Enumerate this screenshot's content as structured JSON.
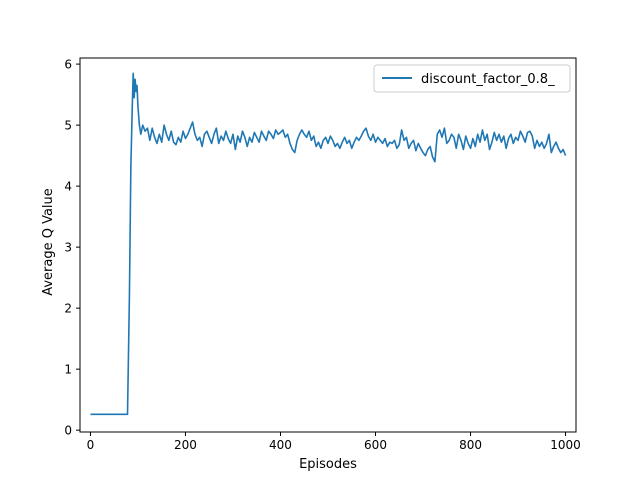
{
  "chart_data": {
    "type": "line",
    "title": "",
    "xlabel": "Episodes",
    "ylabel": "Average Q Value",
    "xlim": [
      -22,
      1022
    ],
    "ylim": [
      -0.03,
      6.1
    ],
    "xticks": [
      0,
      200,
      400,
      600,
      800,
      1000
    ],
    "yticks": [
      0,
      1,
      2,
      3,
      4,
      5,
      6
    ],
    "grid": false,
    "legend_position": "top-right",
    "series": [
      {
        "name": "discount_factor_0.8_",
        "color": "#1f77b4",
        "points": [
          [
            0,
            0.26
          ],
          [
            20,
            0.26
          ],
          [
            40,
            0.26
          ],
          [
            60,
            0.26
          ],
          [
            78,
            0.26
          ],
          [
            82,
            2.2
          ],
          [
            85,
            4.3
          ],
          [
            88,
            5.3
          ],
          [
            90,
            5.85
          ],
          [
            92,
            5.45
          ],
          [
            94,
            5.75
          ],
          [
            96,
            5.55
          ],
          [
            98,
            5.65
          ],
          [
            100,
            5.3
          ],
          [
            103,
            5.0
          ],
          [
            106,
            4.85
          ],
          [
            110,
            5.0
          ],
          [
            115,
            4.9
          ],
          [
            120,
            4.95
          ],
          [
            125,
            4.75
          ],
          [
            130,
            4.95
          ],
          [
            135,
            4.8
          ],
          [
            140,
            4.7
          ],
          [
            145,
            4.85
          ],
          [
            150,
            4.72
          ],
          [
            155,
            5.0
          ],
          [
            160,
            4.85
          ],
          [
            165,
            4.75
          ],
          [
            170,
            4.9
          ],
          [
            175,
            4.72
          ],
          [
            180,
            4.68
          ],
          [
            185,
            4.8
          ],
          [
            190,
            4.72
          ],
          [
            195,
            4.9
          ],
          [
            200,
            4.78
          ],
          [
            205,
            4.85
          ],
          [
            210,
            4.95
          ],
          [
            215,
            5.05
          ],
          [
            220,
            4.85
          ],
          [
            225,
            4.75
          ],
          [
            230,
            4.8
          ],
          [
            235,
            4.65
          ],
          [
            240,
            4.85
          ],
          [
            245,
            4.9
          ],
          [
            250,
            4.8
          ],
          [
            255,
            4.7
          ],
          [
            260,
            4.85
          ],
          [
            265,
            4.95
          ],
          [
            270,
            4.7
          ],
          [
            275,
            4.82
          ],
          [
            280,
            4.75
          ],
          [
            285,
            4.9
          ],
          [
            290,
            4.78
          ],
          [
            295,
            4.7
          ],
          [
            300,
            4.85
          ],
          [
            305,
            4.6
          ],
          [
            310,
            4.82
          ],
          [
            315,
            4.72
          ],
          [
            320,
            4.9
          ],
          [
            325,
            4.8
          ],
          [
            330,
            4.65
          ],
          [
            335,
            4.8
          ],
          [
            340,
            4.72
          ],
          [
            345,
            4.88
          ],
          [
            350,
            4.8
          ],
          [
            355,
            4.72
          ],
          [
            360,
            4.9
          ],
          [
            365,
            4.82
          ],
          [
            370,
            4.75
          ],
          [
            375,
            4.9
          ],
          [
            380,
            4.85
          ],
          [
            385,
            4.78
          ],
          [
            390,
            4.92
          ],
          [
            395,
            4.85
          ],
          [
            400,
            4.88
          ],
          [
            405,
            4.92
          ],
          [
            410,
            4.8
          ],
          [
            415,
            4.85
          ],
          [
            420,
            4.7
          ],
          [
            425,
            4.6
          ],
          [
            430,
            4.55
          ],
          [
            435,
            4.75
          ],
          [
            440,
            4.85
          ],
          [
            445,
            4.92
          ],
          [
            450,
            4.85
          ],
          [
            455,
            4.8
          ],
          [
            460,
            4.9
          ],
          [
            465,
            4.75
          ],
          [
            470,
            4.82
          ],
          [
            475,
            4.65
          ],
          [
            480,
            4.72
          ],
          [
            485,
            4.62
          ],
          [
            490,
            4.75
          ],
          [
            495,
            4.8
          ],
          [
            500,
            4.7
          ],
          [
            505,
            4.82
          ],
          [
            510,
            4.75
          ],
          [
            515,
            4.65
          ],
          [
            520,
            4.7
          ],
          [
            525,
            4.62
          ],
          [
            530,
            4.72
          ],
          [
            535,
            4.8
          ],
          [
            540,
            4.7
          ],
          [
            545,
            4.75
          ],
          [
            550,
            4.62
          ],
          [
            555,
            4.72
          ],
          [
            560,
            4.8
          ],
          [
            565,
            4.75
          ],
          [
            570,
            4.82
          ],
          [
            575,
            4.9
          ],
          [
            580,
            4.95
          ],
          [
            585,
            4.82
          ],
          [
            590,
            4.75
          ],
          [
            595,
            4.85
          ],
          [
            600,
            4.72
          ],
          [
            605,
            4.8
          ],
          [
            610,
            4.75
          ],
          [
            615,
            4.7
          ],
          [
            620,
            4.78
          ],
          [
            625,
            4.65
          ],
          [
            630,
            4.72
          ],
          [
            635,
            4.7
          ],
          [
            640,
            4.75
          ],
          [
            645,
            4.62
          ],
          [
            650,
            4.68
          ],
          [
            655,
            4.92
          ],
          [
            660,
            4.75
          ],
          [
            665,
            4.8
          ],
          [
            670,
            4.62
          ],
          [
            675,
            4.7
          ],
          [
            680,
            4.75
          ],
          [
            685,
            4.58
          ],
          [
            690,
            4.7
          ],
          [
            695,
            4.62
          ],
          [
            700,
            4.55
          ],
          [
            705,
            4.5
          ],
          [
            710,
            4.6
          ],
          [
            715,
            4.65
          ],
          [
            720,
            4.48
          ],
          [
            725,
            4.4
          ],
          [
            730,
            4.85
          ],
          [
            735,
            4.92
          ],
          [
            740,
            4.8
          ],
          [
            745,
            4.95
          ],
          [
            750,
            4.7
          ],
          [
            755,
            4.75
          ],
          [
            760,
            4.85
          ],
          [
            765,
            4.8
          ],
          [
            770,
            4.62
          ],
          [
            775,
            4.85
          ],
          [
            780,
            4.75
          ],
          [
            785,
            4.6
          ],
          [
            790,
            4.82
          ],
          [
            795,
            4.7
          ],
          [
            800,
            4.62
          ],
          [
            805,
            4.78
          ],
          [
            810,
            4.65
          ],
          [
            815,
            4.85
          ],
          [
            820,
            4.72
          ],
          [
            825,
            4.92
          ],
          [
            830,
            4.75
          ],
          [
            835,
            4.85
          ],
          [
            840,
            4.6
          ],
          [
            845,
            4.72
          ],
          [
            850,
            4.88
          ],
          [
            855,
            4.75
          ],
          [
            860,
            4.85
          ],
          [
            865,
            4.72
          ],
          [
            870,
            4.82
          ],
          [
            875,
            4.62
          ],
          [
            880,
            4.78
          ],
          [
            885,
            4.85
          ],
          [
            890,
            4.7
          ],
          [
            895,
            4.8
          ],
          [
            900,
            4.75
          ],
          [
            905,
            4.9
          ],
          [
            910,
            4.82
          ],
          [
            915,
            4.72
          ],
          [
            920,
            4.88
          ],
          [
            925,
            4.9
          ],
          [
            930,
            4.82
          ],
          [
            935,
            4.62
          ],
          [
            940,
            4.75
          ],
          [
            945,
            4.65
          ],
          [
            950,
            4.72
          ],
          [
            955,
            4.62
          ],
          [
            960,
            4.7
          ],
          [
            965,
            4.85
          ],
          [
            970,
            4.55
          ],
          [
            975,
            4.65
          ],
          [
            980,
            4.72
          ],
          [
            985,
            4.62
          ],
          [
            990,
            4.55
          ],
          [
            995,
            4.6
          ],
          [
            1000,
            4.5
          ]
        ]
      }
    ]
  }
}
